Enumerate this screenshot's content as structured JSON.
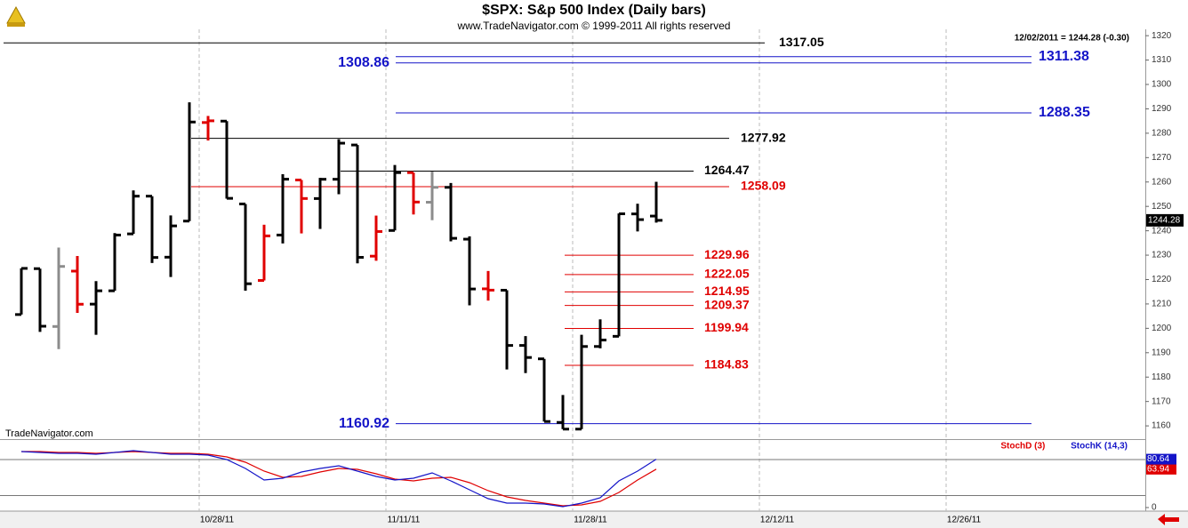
{
  "header": {
    "title": "$SPX:  S&p 500 Index  (Daily bars)",
    "subtitle": "www.TradeNavigator.com © 1999-2011 All rights reserved",
    "quote": "12/02/2011 = 1244.28 (-0.30)",
    "watermark": "TradeNavigator.com"
  },
  "chart_data": [
    {
      "type": "ohlc",
      "x": [
        0,
        1,
        2,
        3,
        4,
        5,
        6,
        7,
        8,
        9,
        10,
        11,
        12,
        13,
        14,
        15,
        16,
        17,
        18,
        19,
        20,
        21,
        22,
        23,
        24,
        25,
        26,
        27,
        28,
        29,
        30,
        31,
        32,
        33,
        34
      ],
      "open": [
        1205.65,
        1224.47,
        1200.75,
        1223.46,
        1209.92,
        1215.39,
        1238.72,
        1254.19,
        1229.17,
        1243.97,
        1284.39,
        1284.96,
        1251.0,
        1219.62,
        1238.25,
        1260.82,
        1253.21,
        1261.12,
        1275.18,
        1229.59,
        1240.12,
        1263.85,
        1251.7,
        1257.81,
        1236.56,
        1216.19,
        1215.62,
        1192.98,
        1187.48,
        1161.41,
        1158.67,
        1192.56,
        1196.72,
        1246.91,
        1246.03
      ],
      "high": [
        1224.61,
        1224.47,
        1233.1,
        1229.64,
        1219.36,
        1239.03,
        1256.55,
        1254.19,
        1246.28,
        1292.66,
        1287.08,
        1284.96,
        1251.0,
        1242.48,
        1263.21,
        1260.82,
        1261.7,
        1277.55,
        1275.18,
        1246.22,
        1266.98,
        1263.85,
        1264.25,
        1259.61,
        1237.73,
        1223.51,
        1215.62,
        1196.81,
        1187.48,
        1172.66,
        1197.35,
        1203.67,
        1247.11,
        1251.09,
        1260.08
      ],
      "low": [
        1205.65,
        1198.55,
        1191.48,
        1206.31,
        1197.34,
        1215.39,
        1238.72,
        1226.79,
        1221.06,
        1243.97,
        1277.01,
        1253.16,
        1215.42,
        1219.62,
        1234.81,
        1238.92,
        1240.75,
        1254.99,
        1226.64,
        1227.7,
        1240.12,
        1246.68,
        1244.34,
        1235.67,
        1209.43,
        1211.36,
        1183.16,
        1181.65,
        1161.79,
        1158.66,
        1158.67,
        1191.8,
        1196.72,
        1239.73,
        1243.35
      ],
      "close": [
        1224.58,
        1200.86,
        1225.38,
        1209.88,
        1215.39,
        1238.25,
        1254.19,
        1229.05,
        1242.0,
        1284.59,
        1285.09,
        1253.3,
        1218.28,
        1237.9,
        1261.15,
        1253.23,
        1261.12,
        1275.92,
        1229.1,
        1239.7,
        1263.85,
        1251.78,
        1257.81,
        1236.91,
        1216.13,
        1215.65,
        1192.98,
        1188.04,
        1161.79,
        1158.67,
        1192.55,
        1195.19,
        1246.96,
        1244.58,
        1244.28
      ],
      "colors": [
        "#000000",
        "#000000",
        "#8c8c8c",
        "#e00000",
        "#000000",
        "#000000",
        "#000000",
        "#000000",
        "#000000",
        "#000000",
        "#e00000",
        "#000000",
        "#000000",
        "#e00000",
        "#000000",
        "#e00000",
        "#000000",
        "#000000",
        "#000000",
        "#e00000",
        "#000000",
        "#e00000",
        "#8c8c8c",
        "#000000",
        "#000000",
        "#e00000",
        "#000000",
        "#000000",
        "#000000",
        "#000000",
        "#000000",
        "#000000",
        "#000000",
        "#000000",
        "#000000"
      ],
      "xlim": [
        -1,
        60
      ],
      "xticks": [
        {
          "value": 10,
          "label": "10/28/11"
        },
        {
          "value": 20,
          "label": "11/11/11"
        },
        {
          "value": 30,
          "label": "11/28/11"
        },
        {
          "value": 40,
          "label": "12/12/11"
        },
        {
          "value": 50,
          "label": "12/26/11"
        }
      ],
      "ylim": [
        1155.3,
        1322.6
      ],
      "yticks": [
        1160,
        1170,
        1180,
        1190,
        1200,
        1210,
        1220,
        1230,
        1240,
        1250,
        1260,
        1270,
        1280,
        1290,
        1300,
        1310,
        1320
      ],
      "grid": true,
      "levels": [
        {
          "value": 1317.05,
          "color": "#000000"
        },
        {
          "value": 1311.38,
          "color": "#1414c8"
        },
        {
          "value": 1308.86,
          "color": "#1414c8"
        },
        {
          "value": 1288.35,
          "color": "#1414c8"
        },
        {
          "value": 1277.92,
          "color": "#000000"
        },
        {
          "value": 1264.47,
          "color": "#000000"
        },
        {
          "value": 1258.09,
          "color": "#e00000"
        },
        {
          "value": 1229.96,
          "color": "#e00000"
        },
        {
          "value": 1222.05,
          "color": "#e00000"
        },
        {
          "value": 1214.95,
          "color": "#e00000"
        },
        {
          "value": 1209.37,
          "color": "#e00000"
        },
        {
          "value": 1199.94,
          "color": "#e00000"
        },
        {
          "value": 1184.83,
          "color": "#e00000"
        },
        {
          "value": 1160.92,
          "color": "#1414c8"
        }
      ]
    },
    {
      "type": "line",
      "x": [
        0,
        1,
        2,
        3,
        4,
        5,
        6,
        7,
        8,
        9,
        10,
        11,
        12,
        13,
        14,
        15,
        16,
        17,
        18,
        19,
        20,
        21,
        22,
        23,
        24,
        25,
        26,
        27,
        28,
        29,
        30,
        31,
        32,
        33,
        34
      ],
      "xlim": [
        -1,
        60
      ],
      "ylim": [
        0,
        100
      ],
      "yticks": [
        0
      ],
      "levels": [
        20,
        80
      ],
      "series": [
        {
          "name": "StochD (3)",
          "color": "#e00000",
          "values": [
            93.3,
            93.3,
            91.9,
            91.9,
            90.4,
            91.9,
            93.3,
            91.9,
            90.4,
            90.4,
            88.9,
            84.4,
            75.6,
            60.7,
            50.4,
            51.9,
            59.3,
            65.2,
            63.7,
            56.3,
            47.4,
            44.4,
            48.9,
            50.4,
            41.5,
            28.1,
            17.8,
            11.9,
            7.4,
            3,
            4.4,
            10.4,
            25.2,
            45.9,
            63.94
          ]
        },
        {
          "name": "StochK (14,3)",
          "color": "#1414c8",
          "values": [
            93.3,
            91.9,
            90.4,
            90.4,
            88.9,
            91.9,
            94.8,
            91.9,
            88.9,
            88.9,
            87.4,
            80,
            65.2,
            45.9,
            48.9,
            59.3,
            65.2,
            69.6,
            60.7,
            51.9,
            45.9,
            48.9,
            57.8,
            44.4,
            29.6,
            14.8,
            7.4,
            7.4,
            5.9,
            1.5,
            7.4,
            16.3,
            44.4,
            60.7,
            80.64
          ]
        }
      ]
    }
  ]
}
